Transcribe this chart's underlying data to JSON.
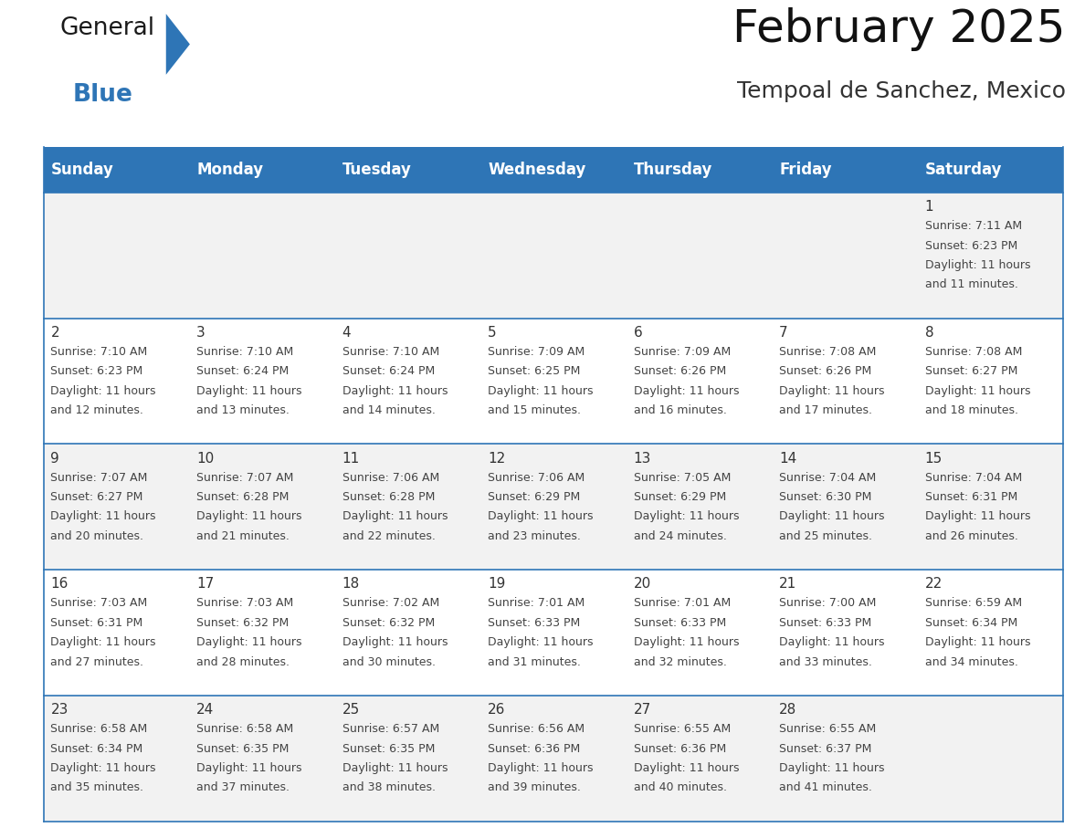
{
  "title": "February 2025",
  "subtitle": "Tempoal de Sanchez, Mexico",
  "header_bg": "#2E75B6",
  "header_text_color": "#FFFFFF",
  "cell_border_color": "#2E75B6",
  "row_border_color": "#2E75B6",
  "day_number_color": "#333333",
  "detail_text_color": "#444444",
  "background_color": "#FFFFFF",
  "alt_row_color": "#F2F2F2",
  "days_of_week": [
    "Sunday",
    "Monday",
    "Tuesday",
    "Wednesday",
    "Thursday",
    "Friday",
    "Saturday"
  ],
  "weeks": [
    [
      {
        "day": null,
        "sunrise": null,
        "sunset": null,
        "daylight": null
      },
      {
        "day": null,
        "sunrise": null,
        "sunset": null,
        "daylight": null
      },
      {
        "day": null,
        "sunrise": null,
        "sunset": null,
        "daylight": null
      },
      {
        "day": null,
        "sunrise": null,
        "sunset": null,
        "daylight": null
      },
      {
        "day": null,
        "sunrise": null,
        "sunset": null,
        "daylight": null
      },
      {
        "day": null,
        "sunrise": null,
        "sunset": null,
        "daylight": null
      },
      {
        "day": 1,
        "sunrise": "7:11 AM",
        "sunset": "6:23 PM",
        "daylight": "11 hours\nand 11 minutes."
      }
    ],
    [
      {
        "day": 2,
        "sunrise": "7:10 AM",
        "sunset": "6:23 PM",
        "daylight": "11 hours\nand 12 minutes."
      },
      {
        "day": 3,
        "sunrise": "7:10 AM",
        "sunset": "6:24 PM",
        "daylight": "11 hours\nand 13 minutes."
      },
      {
        "day": 4,
        "sunrise": "7:10 AM",
        "sunset": "6:24 PM",
        "daylight": "11 hours\nand 14 minutes."
      },
      {
        "day": 5,
        "sunrise": "7:09 AM",
        "sunset": "6:25 PM",
        "daylight": "11 hours\nand 15 minutes."
      },
      {
        "day": 6,
        "sunrise": "7:09 AM",
        "sunset": "6:26 PM",
        "daylight": "11 hours\nand 16 minutes."
      },
      {
        "day": 7,
        "sunrise": "7:08 AM",
        "sunset": "6:26 PM",
        "daylight": "11 hours\nand 17 minutes."
      },
      {
        "day": 8,
        "sunrise": "7:08 AM",
        "sunset": "6:27 PM",
        "daylight": "11 hours\nand 18 minutes."
      }
    ],
    [
      {
        "day": 9,
        "sunrise": "7:07 AM",
        "sunset": "6:27 PM",
        "daylight": "11 hours\nand 20 minutes."
      },
      {
        "day": 10,
        "sunrise": "7:07 AM",
        "sunset": "6:28 PM",
        "daylight": "11 hours\nand 21 minutes."
      },
      {
        "day": 11,
        "sunrise": "7:06 AM",
        "sunset": "6:28 PM",
        "daylight": "11 hours\nand 22 minutes."
      },
      {
        "day": 12,
        "sunrise": "7:06 AM",
        "sunset": "6:29 PM",
        "daylight": "11 hours\nand 23 minutes."
      },
      {
        "day": 13,
        "sunrise": "7:05 AM",
        "sunset": "6:29 PM",
        "daylight": "11 hours\nand 24 minutes."
      },
      {
        "day": 14,
        "sunrise": "7:04 AM",
        "sunset": "6:30 PM",
        "daylight": "11 hours\nand 25 minutes."
      },
      {
        "day": 15,
        "sunrise": "7:04 AM",
        "sunset": "6:31 PM",
        "daylight": "11 hours\nand 26 minutes."
      }
    ],
    [
      {
        "day": 16,
        "sunrise": "7:03 AM",
        "sunset": "6:31 PM",
        "daylight": "11 hours\nand 27 minutes."
      },
      {
        "day": 17,
        "sunrise": "7:03 AM",
        "sunset": "6:32 PM",
        "daylight": "11 hours\nand 28 minutes."
      },
      {
        "day": 18,
        "sunrise": "7:02 AM",
        "sunset": "6:32 PM",
        "daylight": "11 hours\nand 30 minutes."
      },
      {
        "day": 19,
        "sunrise": "7:01 AM",
        "sunset": "6:33 PM",
        "daylight": "11 hours\nand 31 minutes."
      },
      {
        "day": 20,
        "sunrise": "7:01 AM",
        "sunset": "6:33 PM",
        "daylight": "11 hours\nand 32 minutes."
      },
      {
        "day": 21,
        "sunrise": "7:00 AM",
        "sunset": "6:33 PM",
        "daylight": "11 hours\nand 33 minutes."
      },
      {
        "day": 22,
        "sunrise": "6:59 AM",
        "sunset": "6:34 PM",
        "daylight": "11 hours\nand 34 minutes."
      }
    ],
    [
      {
        "day": 23,
        "sunrise": "6:58 AM",
        "sunset": "6:34 PM",
        "daylight": "11 hours\nand 35 minutes."
      },
      {
        "day": 24,
        "sunrise": "6:58 AM",
        "sunset": "6:35 PM",
        "daylight": "11 hours\nand 37 minutes."
      },
      {
        "day": 25,
        "sunrise": "6:57 AM",
        "sunset": "6:35 PM",
        "daylight": "11 hours\nand 38 minutes."
      },
      {
        "day": 26,
        "sunrise": "6:56 AM",
        "sunset": "6:36 PM",
        "daylight": "11 hours\nand 39 minutes."
      },
      {
        "day": 27,
        "sunrise": "6:55 AM",
        "sunset": "6:36 PM",
        "daylight": "11 hours\nand 40 minutes."
      },
      {
        "day": 28,
        "sunrise": "6:55 AM",
        "sunset": "6:37 PM",
        "daylight": "11 hours\nand 41 minutes."
      },
      {
        "day": null,
        "sunrise": null,
        "sunset": null,
        "daylight": null
      }
    ]
  ],
  "logo_general_color": "#1a1a1a",
  "logo_blue_color": "#2E75B6",
  "title_fontsize": 36,
  "subtitle_fontsize": 18,
  "header_fontsize": 12,
  "day_num_fontsize": 11,
  "detail_fontsize": 9
}
